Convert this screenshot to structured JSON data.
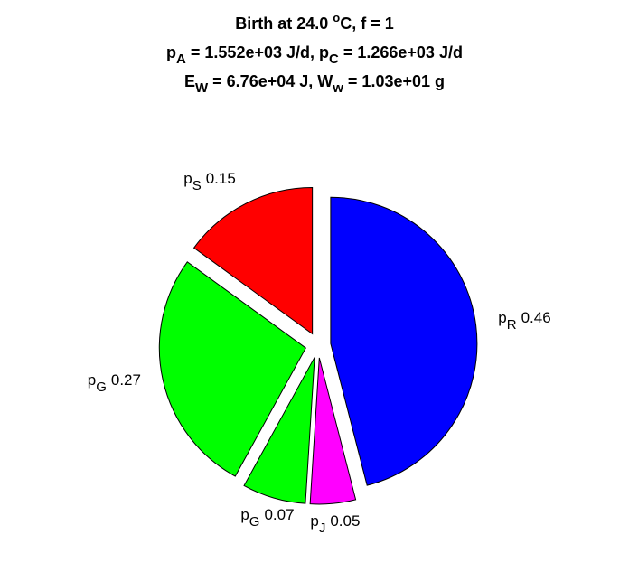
{
  "chart_data": {
    "type": "pie",
    "title": [
      [
        {
          "text": "Birth at 24.0 "
        },
        {
          "text": "o",
          "shift": "sup"
        },
        {
          "text": "C, f = 1"
        }
      ],
      [
        {
          "text": "p"
        },
        {
          "text": "A",
          "shift": "sub"
        },
        {
          "text": " = 1.552e+03 J/d, p"
        },
        {
          "text": "C",
          "shift": "sub"
        },
        {
          "text": " = 1.266e+03 J/d"
        }
      ],
      [
        {
          "text": "E"
        },
        {
          "text": "W",
          "shift": "sub"
        },
        {
          "text": " = 6.76e+04 J, W"
        },
        {
          "text": "w",
          "shift": "sub"
        },
        {
          "text": " = 1.03e+01 g"
        }
      ]
    ],
    "categories": [
      {
        "text": "p",
        "sub": "R"
      },
      {
        "text": "p",
        "sub": "J"
      },
      {
        "text": "p",
        "sub": "G"
      },
      {
        "text": "p",
        "sub": "G"
      },
      {
        "text": "p",
        "sub": "S"
      }
    ],
    "values": [
      0.46,
      0.05,
      0.07,
      0.27,
      0.15
    ],
    "colors": [
      "#0000ff",
      "#ff00ff",
      "#00ff00",
      "#00ff00",
      "#ff0000"
    ],
    "direction": "clockwise",
    "start": "top",
    "exploded": true
  }
}
